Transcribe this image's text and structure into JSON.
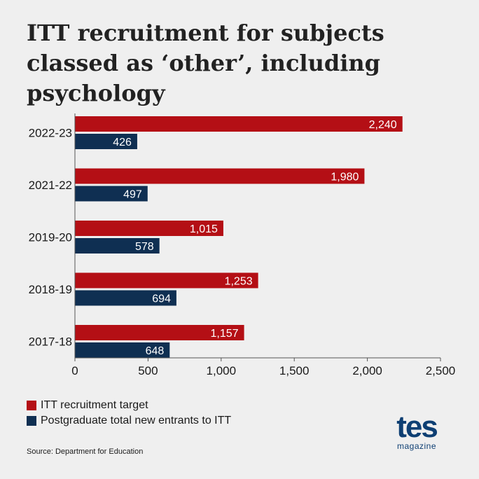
{
  "title": "ITT recruitment for subjects classed as ‘other’, including psychology",
  "source": "Source: Department for Education",
  "logo": {
    "main": "tes",
    "sub": "magazine"
  },
  "colors": {
    "target": "#b40f15",
    "entrants": "#0f2f52",
    "background": "#efefef"
  },
  "legend": [
    {
      "label": "ITT recruitment target",
      "color": "#b40f15"
    },
    {
      "label": "Postgraduate total new entrants to ITT",
      "color": "#0f2f52"
    }
  ],
  "chart_data": {
    "type": "bar",
    "orientation": "horizontal",
    "categories": [
      "2022-23",
      "2021-22",
      "2019-20",
      "2018-19",
      "2017-18"
    ],
    "series": [
      {
        "name": "ITT recruitment target",
        "values": [
          2240,
          1980,
          1015,
          1253,
          1157
        ],
        "labels": [
          "2,240",
          "1,980",
          "1,015",
          "1,253",
          "1,157"
        ]
      },
      {
        "name": "Postgraduate total new entrants to ITT",
        "values": [
          426,
          497,
          578,
          694,
          648
        ],
        "labels": [
          "426",
          "497",
          "578",
          "694",
          "648"
        ]
      }
    ],
    "xlim": [
      0,
      2500
    ],
    "ticks": [
      0,
      500,
      1000,
      1500,
      2000,
      2500
    ],
    "tick_labels": [
      "0",
      "500",
      "1,000",
      "1,500",
      "2,000",
      "2,500"
    ],
    "grid": false
  }
}
